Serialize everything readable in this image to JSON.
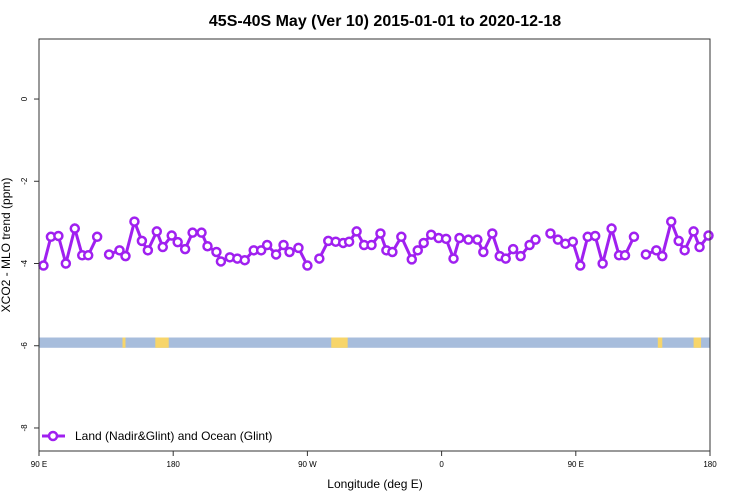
{
  "chart_data": {
    "type": "line",
    "title": "45S-40S May (Ver 10)   2015-01-01 to 2020-12-18",
    "xlabel": "Longitude (deg E)",
    "ylabel": "XCO2 - MLO trend (ppm)",
    "xlim": [
      90,
      540
    ],
    "ylim": [
      -8.56,
      1.46
    ],
    "x_ticks": [
      {
        "value": 90,
        "label": "90 E"
      },
      {
        "value": 180,
        "label": "180"
      },
      {
        "value": 270,
        "label": "90 W"
      },
      {
        "value": 360,
        "label": "0"
      },
      {
        "value": 450,
        "label": "90 E"
      },
      {
        "value": 540,
        "label": "180"
      }
    ],
    "y_ticks": [
      {
        "value": 0,
        "label": "0"
      },
      {
        "value": -2,
        "label": "-2"
      },
      {
        "value": -4,
        "label": "-4"
      },
      {
        "value": -6,
        "label": "-6"
      },
      {
        "value": -8,
        "label": "-8"
      }
    ],
    "grid": false,
    "legend": {
      "placement": "bottom-left",
      "label": "Land (Nadir&Glint) and Ocean (Glint)"
    },
    "series": [
      {
        "name": "Land (Nadir&Glint) and Ocean (Glint)",
        "color": "#a020f0",
        "points": [
          [
            93,
            -4.05
          ],
          [
            98,
            -3.35
          ],
          [
            103,
            -3.33
          ],
          [
            108,
            -4.0
          ],
          [
            114,
            -3.15
          ],
          [
            119,
            -3.8
          ],
          [
            123,
            -3.8
          ],
          [
            129,
            -3.35
          ],
          null,
          [
            137,
            -3.78
          ],
          [
            144,
            -3.68
          ],
          [
            148,
            -3.82
          ],
          [
            154,
            -2.98
          ],
          [
            159,
            -3.45
          ],
          [
            163,
            -3.68
          ],
          [
            169,
            -3.22
          ],
          [
            173,
            -3.6
          ],
          [
            179,
            -3.32
          ],
          [
            183,
            -3.48
          ],
          [
            188,
            -3.65
          ],
          [
            193,
            -3.25
          ],
          [
            199,
            -3.25
          ],
          [
            203,
            -3.58
          ],
          [
            209,
            -3.72
          ],
          [
            212,
            -3.95
          ],
          [
            218,
            -3.85
          ],
          [
            223,
            -3.88
          ],
          [
            228,
            -3.92
          ],
          [
            234,
            -3.68
          ],
          [
            239,
            -3.68
          ],
          [
            243,
            -3.55
          ],
          [
            249,
            -3.78
          ],
          [
            254,
            -3.55
          ],
          [
            258,
            -3.72
          ],
          [
            264,
            -3.62
          ],
          [
            270,
            -4.05
          ],
          null,
          [
            278,
            -3.88
          ],
          [
            284,
            -3.45
          ],
          [
            289,
            -3.47
          ],
          [
            294,
            -3.5
          ],
          [
            298,
            -3.47
          ],
          [
            303,
            -3.22
          ],
          [
            308,
            -3.55
          ],
          [
            313,
            -3.55
          ],
          [
            319,
            -3.27
          ],
          [
            323,
            -3.68
          ],
          [
            327,
            -3.72
          ],
          [
            333,
            -3.35
          ],
          [
            340,
            -3.9
          ],
          [
            344,
            -3.68
          ],
          [
            348,
            -3.5
          ],
          [
            353,
            -3.3
          ],
          [
            358,
            -3.38
          ],
          [
            363,
            -3.4
          ],
          [
            368,
            -3.88
          ],
          [
            372,
            -3.38
          ],
          [
            378,
            -3.42
          ],
          [
            384,
            -3.42
          ],
          [
            388,
            -3.72
          ],
          [
            394,
            -3.27
          ],
          [
            399,
            -3.82
          ],
          [
            403,
            -3.88
          ],
          [
            408,
            -3.65
          ],
          [
            413,
            -3.82
          ],
          [
            419,
            -3.55
          ],
          [
            423,
            -3.42
          ],
          null,
          [
            433,
            -3.27
          ],
          [
            438,
            -3.42
          ],
          [
            443,
            -3.52
          ],
          [
            448,
            -3.47
          ],
          [
            453,
            -4.05
          ],
          [
            458,
            -3.35
          ],
          [
            463,
            -3.33
          ],
          [
            468,
            -4.0
          ],
          [
            474,
            -3.15
          ],
          [
            479,
            -3.8
          ],
          [
            483,
            -3.8
          ],
          [
            489,
            -3.35
          ],
          null,
          [
            497,
            -3.78
          ],
          [
            504,
            -3.68
          ],
          [
            508,
            -3.82
          ],
          [
            514,
            -2.98
          ],
          [
            519,
            -3.45
          ],
          [
            523,
            -3.68
          ],
          [
            529,
            -3.22
          ],
          [
            533,
            -3.6
          ],
          [
            539,
            -3.32
          ]
        ]
      }
    ],
    "surface_strip": {
      "ylim": [
        -5.8,
        -6.05
      ],
      "ocean_color": "#a7bddc",
      "land_color": "#f7d56a",
      "land_ranges": [
        [
          146,
          148
        ],
        [
          168,
          177
        ],
        [
          286,
          297
        ],
        [
          505,
          508
        ],
        [
          529,
          534
        ]
      ]
    }
  }
}
